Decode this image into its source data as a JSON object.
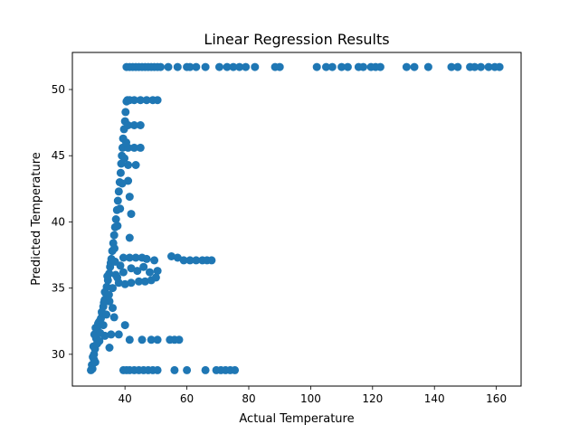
{
  "chart_data": {
    "type": "scatter",
    "title": "Linear Regression Results",
    "xlabel": "Actual Temperature",
    "ylabel": "Predicted Temperature",
    "xlim": [
      23,
      168
    ],
    "ylim": [
      27.6,
      52.8
    ],
    "xticks": [
      40,
      60,
      80,
      100,
      120,
      140,
      160
    ],
    "yticks": [
      30,
      35,
      40,
      45,
      50
    ],
    "grid": false,
    "legend": "none",
    "marker_color": "#1f77b4",
    "series": [
      {
        "points": [
          [
            29.5,
            28.9
          ],
          [
            30.0,
            29.6
          ],
          [
            30.3,
            30.4
          ],
          [
            30.7,
            31.2
          ],
          [
            31.0,
            31.9
          ],
          [
            31.3,
            32.3
          ],
          [
            31.8,
            32.5
          ],
          [
            32.2,
            32.7
          ],
          [
            32.6,
            33.1
          ],
          [
            33.0,
            33.6
          ],
          [
            33.4,
            34.1
          ],
          [
            33.8,
            34.6
          ],
          [
            34.1,
            35.1
          ],
          [
            34.5,
            35.6
          ],
          [
            34.9,
            36.1
          ],
          [
            35.2,
            36.6
          ],
          [
            35.6,
            37.2
          ],
          [
            35.9,
            37.8
          ],
          [
            36.2,
            38.4
          ],
          [
            36.5,
            39.0
          ],
          [
            36.8,
            39.6
          ],
          [
            37.1,
            40.2
          ],
          [
            37.4,
            40.9
          ],
          [
            37.7,
            41.6
          ],
          [
            38.0,
            42.3
          ],
          [
            38.3,
            43.0
          ],
          [
            38.6,
            43.7
          ],
          [
            38.8,
            44.4
          ],
          [
            39.0,
            45.0
          ],
          [
            39.2,
            45.6
          ],
          [
            39.4,
            46.3
          ],
          [
            39.7,
            47.0
          ],
          [
            40.0,
            47.6
          ],
          [
            40.2,
            48.3
          ],
          [
            40.5,
            49.1
          ],
          [
            40.8,
            49.2
          ],
          [
            41.5,
            49.2
          ],
          [
            43.0,
            49.2
          ],
          [
            45.0,
            49.2
          ],
          [
            47.0,
            49.2
          ],
          [
            49.0,
            49.2
          ],
          [
            50.5,
            49.2
          ],
          [
            41.0,
            47.3
          ],
          [
            43.0,
            47.3
          ],
          [
            45.0,
            47.3
          ],
          [
            41.0,
            45.6
          ],
          [
            43.0,
            45.6
          ],
          [
            45.0,
            45.6
          ],
          [
            41.0,
            44.3
          ],
          [
            43.5,
            44.3
          ],
          [
            41.0,
            43.1
          ],
          [
            41.5,
            41.9
          ],
          [
            42.0,
            40.6
          ],
          [
            41.5,
            38.8
          ],
          [
            39.5,
            37.3
          ],
          [
            41.5,
            37.3
          ],
          [
            43.5,
            37.3
          ],
          [
            45.5,
            37.3
          ],
          [
            47.0,
            37.2
          ],
          [
            49.5,
            37.1
          ],
          [
            55.0,
            37.4
          ],
          [
            57.0,
            37.3
          ],
          [
            59.0,
            37.1
          ],
          [
            61.0,
            37.1
          ],
          [
            63.0,
            37.1
          ],
          [
            65.0,
            37.1
          ],
          [
            66.5,
            37.1
          ],
          [
            68.0,
            37.1
          ],
          [
            39.5,
            36.2
          ],
          [
            42.0,
            36.5
          ],
          [
            44.0,
            36.3
          ],
          [
            46.0,
            36.6
          ],
          [
            48.0,
            36.2
          ],
          [
            50.5,
            36.3
          ],
          [
            38.0,
            35.4
          ],
          [
            40.0,
            35.3
          ],
          [
            42.0,
            35.4
          ],
          [
            44.5,
            35.5
          ],
          [
            46.5,
            35.5
          ],
          [
            48.5,
            35.6
          ],
          [
            50.0,
            35.8
          ],
          [
            36.0,
            33.5
          ],
          [
            36.5,
            32.8
          ],
          [
            35.5,
            31.5
          ],
          [
            35.0,
            30.5
          ],
          [
            41.5,
            31.1
          ],
          [
            45.5,
            31.1
          ],
          [
            48.5,
            31.1
          ],
          [
            50.5,
            31.1
          ],
          [
            54.5,
            31.1
          ],
          [
            56.0,
            31.1
          ],
          [
            57.5,
            31.1
          ],
          [
            40.0,
            32.2
          ],
          [
            38.0,
            31.5
          ],
          [
            33.5,
            31.4
          ],
          [
            39.5,
            28.8
          ],
          [
            40.5,
            28.8
          ],
          [
            41.5,
            28.8
          ],
          [
            43.0,
            28.8
          ],
          [
            44.5,
            28.8
          ],
          [
            46.0,
            28.8
          ],
          [
            47.5,
            28.8
          ],
          [
            49.0,
            28.8
          ],
          [
            50.5,
            28.8
          ],
          [
            56.0,
            28.8
          ],
          [
            60.0,
            28.8
          ],
          [
            66.0,
            28.8
          ],
          [
            69.5,
            28.8
          ],
          [
            71.0,
            28.8
          ],
          [
            72.5,
            28.8
          ],
          [
            74.0,
            28.8
          ],
          [
            75.5,
            28.8
          ],
          [
            40.5,
            51.7
          ],
          [
            41.5,
            51.7
          ],
          [
            42.5,
            51.7
          ],
          [
            43.5,
            51.7
          ],
          [
            44.5,
            51.7
          ],
          [
            45.5,
            51.7
          ],
          [
            46.5,
            51.7
          ],
          [
            47.5,
            51.7
          ],
          [
            48.5,
            51.7
          ],
          [
            49.5,
            51.7
          ],
          [
            50.5,
            51.7
          ],
          [
            51.5,
            51.7
          ],
          [
            54.0,
            51.7
          ],
          [
            57.0,
            51.7
          ],
          [
            60.0,
            51.7
          ],
          [
            61.0,
            51.7
          ],
          [
            63.0,
            51.7
          ],
          [
            66.0,
            51.7
          ],
          [
            70.5,
            51.7
          ],
          [
            73.0,
            51.7
          ],
          [
            75.0,
            51.7
          ],
          [
            77.0,
            51.7
          ],
          [
            79.0,
            51.7
          ],
          [
            82.0,
            51.7
          ],
          [
            88.5,
            51.7
          ],
          [
            90.0,
            51.7
          ],
          [
            102.0,
            51.7
          ],
          [
            105.0,
            51.7
          ],
          [
            107.0,
            51.7
          ],
          [
            110.0,
            51.7
          ],
          [
            112.0,
            51.7
          ],
          [
            115.5,
            51.7
          ],
          [
            117.0,
            51.7
          ],
          [
            119.5,
            51.7
          ],
          [
            121.0,
            51.7
          ],
          [
            122.5,
            51.7
          ],
          [
            131.0,
            51.7
          ],
          [
            133.5,
            51.7
          ],
          [
            138.0,
            51.7
          ],
          [
            145.5,
            51.7
          ],
          [
            147.5,
            51.7
          ],
          [
            151.5,
            51.7
          ],
          [
            153.0,
            51.7
          ],
          [
            155.0,
            51.7
          ],
          [
            157.5,
            51.7
          ],
          [
            159.5,
            51.7
          ],
          [
            161.0,
            51.7
          ],
          [
            29.0,
            28.8
          ],
          [
            29.3,
            29.2
          ],
          [
            29.6,
            29.8
          ],
          [
            29.8,
            30.6
          ],
          [
            30.1,
            31.5
          ],
          [
            30.5,
            32.0
          ],
          [
            31.5,
            32.4
          ],
          [
            32.5,
            33.2
          ],
          [
            33.5,
            34.7
          ],
          [
            34.3,
            35.9
          ],
          [
            35.4,
            36.9
          ],
          [
            36.6,
            38.0
          ],
          [
            37.6,
            39.7
          ],
          [
            38.4,
            41.0
          ],
          [
            39.1,
            42.9
          ],
          [
            39.8,
            44.8
          ],
          [
            40.4,
            46.0
          ],
          [
            37.0,
            36.0
          ],
          [
            36.0,
            35.0
          ],
          [
            35.0,
            34.0
          ],
          [
            34.0,
            33.0
          ],
          [
            33.0,
            32.2
          ],
          [
            32.0,
            31.6
          ],
          [
            31.0,
            30.8
          ],
          [
            30.0,
            30.0
          ],
          [
            38.5,
            36.7
          ],
          [
            37.5,
            35.8
          ],
          [
            36.8,
            37.0
          ],
          [
            34.8,
            34.5
          ],
          [
            33.2,
            33.9
          ],
          [
            31.7,
            31.0
          ],
          [
            30.4,
            29.4
          ]
        ]
      }
    ]
  }
}
